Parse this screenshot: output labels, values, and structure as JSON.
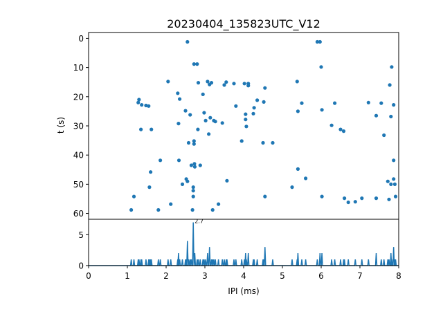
{
  "chart_data": [
    {
      "type": "scatter",
      "title": "20230404_135823UTC_V12",
      "xlabel": "",
      "ylabel": "t (s)",
      "xlim": [
        0,
        8
      ],
      "ylim": [
        62,
        -2
      ],
      "y_inverted": true,
      "xticks": [],
      "yticks": [
        "0",
        "10",
        "20",
        "30",
        "40",
        "50",
        "60"
      ],
      "color": "#1f77b4",
      "points": [
        [
          1.1,
          58.8
        ],
        [
          1.17,
          54.2
        ],
        [
          1.3,
          21
        ],
        [
          1.28,
          22
        ],
        [
          1.35,
          31.2
        ],
        [
          1.37,
          22.8
        ],
        [
          1.48,
          23
        ],
        [
          1.55,
          23.2
        ],
        [
          1.57,
          51
        ],
        [
          1.6,
          45.8
        ],
        [
          1.62,
          31.2
        ],
        [
          1.8,
          58.8
        ],
        [
          1.85,
          41.8
        ],
        [
          2.05,
          14.8
        ],
        [
          2.12,
          56.8
        ],
        [
          2.3,
          18.8
        ],
        [
          2.32,
          29.2
        ],
        [
          2.35,
          20.8
        ],
        [
          2.33,
          41.8
        ],
        [
          2.42,
          50
        ],
        [
          2.5,
          24.8
        ],
        [
          2.52,
          48.2
        ],
        [
          2.55,
          1.2
        ],
        [
          2.55,
          49
        ],
        [
          2.58,
          35.8
        ],
        [
          2.62,
          26.2
        ],
        [
          2.65,
          43.5
        ],
        [
          2.68,
          58.8
        ],
        [
          2.7,
          54.2
        ],
        [
          2.7,
          52.2
        ],
        [
          2.7,
          51
        ],
        [
          2.72,
          8.8
        ],
        [
          2.72,
          35.2
        ],
        [
          2.72,
          36.2
        ],
        [
          2.73,
          43
        ],
        [
          2.74,
          44
        ],
        [
          2.8,
          8.8
        ],
        [
          2.82,
          31.2
        ],
        [
          2.83,
          15.2
        ],
        [
          2.88,
          43.5
        ],
        [
          2.95,
          19.2
        ],
        [
          2.98,
          25.5
        ],
        [
          3.02,
          28.2
        ],
        [
          3.07,
          14.8
        ],
        [
          3.1,
          32.8
        ],
        [
          3.12,
          15.8
        ],
        [
          3.14,
          27.2
        ],
        [
          3.17,
          15.2
        ],
        [
          3.2,
          58.8
        ],
        [
          3.23,
          28.2
        ],
        [
          3.27,
          28.5
        ],
        [
          3.35,
          56.8
        ],
        [
          3.45,
          29
        ],
        [
          3.5,
          16
        ],
        [
          3.55,
          15
        ],
        [
          3.57,
          48.8
        ],
        [
          3.75,
          15.5
        ],
        [
          3.8,
          23.2
        ],
        [
          3.95,
          35.2
        ],
        [
          4.02,
          15.5
        ],
        [
          4.05,
          26
        ],
        [
          4.05,
          27.8
        ],
        [
          4.07,
          30.2
        ],
        [
          4.12,
          15.5
        ],
        [
          4.12,
          16.2
        ],
        [
          4.25,
          25.8
        ],
        [
          4.27,
          23.8
        ],
        [
          4.35,
          21.2
        ],
        [
          4.5,
          35.8
        ],
        [
          4.52,
          21.8
        ],
        [
          4.55,
          54.2
        ],
        [
          4.55,
          17
        ],
        [
          4.75,
          35.8
        ],
        [
          5.25,
          51
        ],
        [
          5.38,
          14.8
        ],
        [
          5.4,
          25
        ],
        [
          5.4,
          44.8
        ],
        [
          5.5,
          22.2
        ],
        [
          5.6,
          48
        ],
        [
          5.9,
          1.2
        ],
        [
          5.97,
          1.2
        ],
        [
          6.0,
          9.8
        ],
        [
          6.02,
          24.5
        ],
        [
          6.02,
          54.2
        ],
        [
          6.27,
          29.8
        ],
        [
          6.35,
          22.2
        ],
        [
          6.5,
          31.2
        ],
        [
          6.58,
          31.8
        ],
        [
          6.6,
          54.8
        ],
        [
          6.7,
          56.2
        ],
        [
          6.88,
          56
        ],
        [
          7.05,
          54.8
        ],
        [
          7.22,
          22
        ],
        [
          7.42,
          26.5
        ],
        [
          7.42,
          54.8
        ],
        [
          7.55,
          22.2
        ],
        [
          7.62,
          33.2
        ],
        [
          7.72,
          49
        ],
        [
          7.75,
          55.2
        ],
        [
          7.77,
          16
        ],
        [
          7.8,
          26.8
        ],
        [
          7.8,
          50
        ],
        [
          7.82,
          9.8
        ],
        [
          7.87,
          22.8
        ],
        [
          7.87,
          41.8
        ],
        [
          7.87,
          48.2
        ],
        [
          7.9,
          50
        ],
        [
          7.92,
          54.2
        ]
      ]
    },
    {
      "type": "line",
      "title": "",
      "xlabel": "IPI (ms)",
      "ylabel": "",
      "xlim": [
        0,
        8
      ],
      "ylim": [
        0,
        7.5
      ],
      "xticks": [
        "0",
        "1",
        "2",
        "3",
        "4",
        "5",
        "6",
        "7",
        "8"
      ],
      "yticks": [
        "0",
        "5"
      ],
      "color": "#1f77b4",
      "annotation": "2.7",
      "annotation_x": 2.7,
      "annotation_y": 7,
      "spikes": [
        [
          1.1,
          1
        ],
        [
          1.17,
          1
        ],
        [
          1.28,
          1
        ],
        [
          1.3,
          1
        ],
        [
          1.35,
          1
        ],
        [
          1.37,
          1
        ],
        [
          1.48,
          1
        ],
        [
          1.55,
          1
        ],
        [
          1.57,
          1
        ],
        [
          1.6,
          1
        ],
        [
          1.62,
          1
        ],
        [
          1.8,
          1
        ],
        [
          1.85,
          1
        ],
        [
          2.05,
          1
        ],
        [
          2.12,
          1
        ],
        [
          2.3,
          1
        ],
        [
          2.32,
          2
        ],
        [
          2.35,
          1
        ],
        [
          2.42,
          1
        ],
        [
          2.5,
          1
        ],
        [
          2.52,
          1
        ],
        [
          2.55,
          4
        ],
        [
          2.58,
          1
        ],
        [
          2.62,
          1
        ],
        [
          2.65,
          1
        ],
        [
          2.7,
          7
        ],
        [
          2.74,
          2
        ],
        [
          2.8,
          1
        ],
        [
          2.83,
          1
        ],
        [
          2.88,
          1
        ],
        [
          2.95,
          1
        ],
        [
          2.98,
          1
        ],
        [
          3.02,
          1
        ],
        [
          3.07,
          2
        ],
        [
          3.12,
          3
        ],
        [
          3.17,
          1
        ],
        [
          3.2,
          1
        ],
        [
          3.23,
          1
        ],
        [
          3.27,
          1
        ],
        [
          3.35,
          1
        ],
        [
          3.45,
          1
        ],
        [
          3.5,
          1
        ],
        [
          3.55,
          1
        ],
        [
          3.57,
          1
        ],
        [
          3.75,
          1
        ],
        [
          3.8,
          1
        ],
        [
          3.95,
          1
        ],
        [
          4.02,
          1
        ],
        [
          4.05,
          2
        ],
        [
          4.07,
          1
        ],
        [
          4.12,
          2
        ],
        [
          4.25,
          1
        ],
        [
          4.27,
          1
        ],
        [
          4.35,
          1
        ],
        [
          4.5,
          1
        ],
        [
          4.52,
          1
        ],
        [
          4.55,
          3
        ],
        [
          4.75,
          1
        ],
        [
          5.25,
          1
        ],
        [
          5.38,
          1
        ],
        [
          5.4,
          2
        ],
        [
          5.5,
          1
        ],
        [
          5.6,
          1
        ],
        [
          5.9,
          1
        ],
        [
          5.97,
          2
        ],
        [
          6.02,
          2
        ],
        [
          6.27,
          1
        ],
        [
          6.35,
          1
        ],
        [
          6.5,
          1
        ],
        [
          6.58,
          1
        ],
        [
          6.6,
          1
        ],
        [
          6.7,
          1
        ],
        [
          6.88,
          1
        ],
        [
          7.05,
          1
        ],
        [
          7.22,
          1
        ],
        [
          7.42,
          2
        ],
        [
          7.55,
          1
        ],
        [
          7.62,
          1
        ],
        [
          7.72,
          1
        ],
        [
          7.75,
          1
        ],
        [
          7.8,
          2
        ],
        [
          7.82,
          1
        ],
        [
          7.87,
          3
        ],
        [
          7.9,
          1
        ],
        [
          7.92,
          1
        ]
      ]
    }
  ]
}
